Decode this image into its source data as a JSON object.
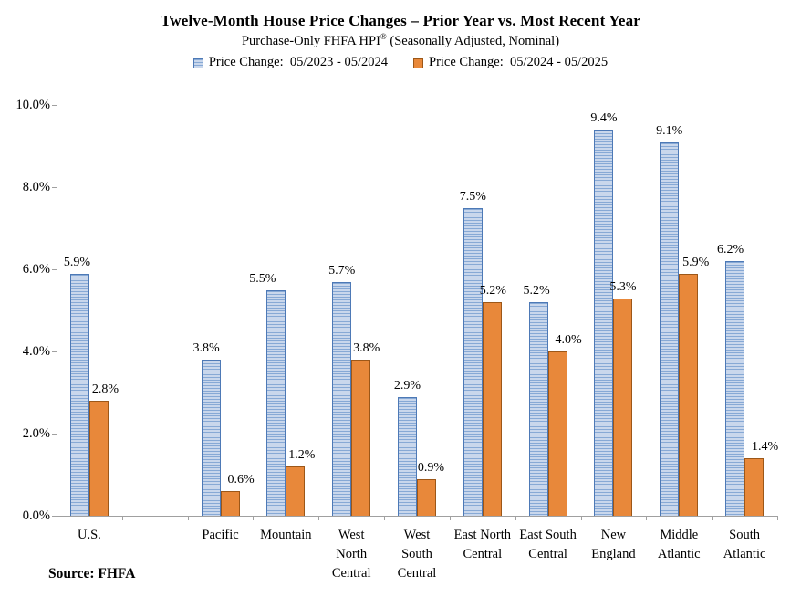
{
  "header": {
    "title": "Twelve-Month House Price Changes – Prior Year vs. Most Recent Year",
    "subtitle": "Purchase-Only FHFA HPI® (Seasonally Adjusted, Nominal)",
    "subtitle_pre": "Purchase-Only FHFA HPI",
    "subtitle_reg": "®",
    "subtitle_post": " (Seasonally Adjusted, Nominal)"
  },
  "legend": {
    "items": [
      {
        "label": "Price Change:  05/2023 - 05/2024",
        "swatch_class": "swatch striped-blue",
        "swatch_name": "striped-blue-swatch-icon"
      },
      {
        "label": "Price Change:  05/2024 - 05/2025",
        "swatch_class": "swatch solid-orange",
        "swatch_name": "solid-orange-swatch-icon"
      }
    ]
  },
  "chart_data": {
    "type": "bar",
    "title": "Twelve-Month House Price Changes – Prior Year vs. Most Recent Year",
    "subtitle": "Purchase-Only FHFA HPI® (Seasonally Adjusted, Nominal)",
    "categories": [
      "U.S.",
      "Pacific",
      "Mountain",
      "West North Central",
      "West South Central",
      "East North Central",
      "East South Central",
      "New England",
      "Middle Atlantic",
      "South Atlantic"
    ],
    "tick_labels": [
      "U.S.",
      "Pacific",
      "Mountain",
      "West\nNorth\nCentral",
      "West\nSouth\nCentral",
      "East North\nCentral",
      "East South\nCentral",
      "New\nEngland",
      "Middle\nAtlantic",
      "South\nAtlantic"
    ],
    "slot_index": [
      0,
      2,
      3,
      4,
      5,
      6,
      7,
      8,
      9,
      10
    ],
    "num_slots": 11,
    "series": [
      {
        "name": "Price Change:  05/2023 - 05/2024",
        "color_key": "blue",
        "values": [
          5.9,
          3.8,
          5.5,
          5.7,
          2.9,
          7.5,
          5.2,
          9.4,
          9.1,
          6.2
        ]
      },
      {
        "name": "Price Change:  05/2024 - 05/2025",
        "color_key": "orange",
        "values": [
          2.8,
          0.6,
          1.2,
          3.8,
          0.9,
          5.2,
          4.0,
          5.3,
          5.9,
          1.4
        ]
      }
    ],
    "data_labels": [
      [
        "5.9%",
        "3.8%",
        "5.5%",
        "5.7%",
        "2.9%",
        "7.5%",
        "5.2%",
        "9.4%",
        "9.1%",
        "6.2%"
      ],
      [
        "2.8%",
        "0.6%",
        "1.2%",
        "3.8%",
        "0.9%",
        "5.2%",
        "4.0%",
        "5.3%",
        "5.9%",
        "1.4%"
      ]
    ],
    "ylim": [
      0,
      10
    ],
    "yticks": [
      0,
      2,
      4,
      6,
      8,
      10
    ],
    "ytick_labels": [
      "0.0%",
      "2.0%",
      "4.0%",
      "6.0%",
      "8.0%",
      "10.0%"
    ],
    "xlabel": "",
    "ylabel": "",
    "grid": false,
    "legend_position": "top",
    "colors": {
      "blue_fill": "#c9d7ec",
      "blue_stripe": "#87a9d5",
      "blue_border": "#4d79b6",
      "orange_fill": "#e8883a",
      "orange_border": "#9c5718",
      "axis": "#a0a0a0",
      "text": "#000000"
    }
  },
  "footer": {
    "source": "Source: FHFA"
  }
}
